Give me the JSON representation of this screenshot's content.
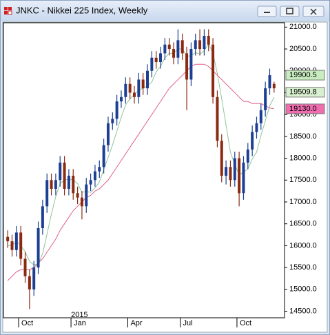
{
  "chart_data": {
    "type": "candlestick",
    "title": "JNKC - Nikkei 225 Index, Weekly",
    "categories": [
      null,
      null,
      null,
      "Oct",
      null,
      null,
      null,
      null,
      null,
      null,
      null,
      null,
      null,
      null,
      null,
      "Jan",
      null,
      null,
      null,
      null,
      null,
      null,
      null,
      null,
      null,
      null,
      null,
      null,
      "Apr",
      null,
      null,
      null,
      null,
      null,
      null,
      null,
      null,
      null,
      null,
      null,
      "Jul",
      null,
      null,
      null,
      null,
      null,
      null,
      null,
      null,
      null,
      null,
      null,
      null,
      "Oct",
      null,
      null,
      null,
      null,
      null,
      null,
      null,
      null
    ],
    "year_label": {
      "index": 15,
      "label": "2015"
    },
    "open": [
      16200,
      16100,
      15900,
      16300,
      15700,
      15300,
      15000,
      15500,
      16400,
      16900,
      17500,
      17300,
      17500,
      17900,
      17300,
      17600,
      17200,
      17100,
      16900,
      17400,
      17500,
      17700,
      17800,
      18300,
      18800,
      18900,
      19300,
      19400,
      19700,
      19500,
      19400,
      19800,
      19600,
      20000,
      20300,
      20200,
      20400,
      20600,
      20500,
      20300,
      20700,
      20400,
      19800,
      20500,
      20700,
      20500,
      20800,
      20600,
      19400,
      18400,
      17600,
      17800,
      17500,
      18000,
      17200,
      17900,
      18200,
      18600,
      18800,
      19100,
      19600,
      19700
    ],
    "high": [
      16350,
      16250,
      16450,
      16450,
      15850,
      15450,
      15650,
      16550,
      17050,
      17650,
      17650,
      17650,
      18050,
      18050,
      17750,
      17750,
      17350,
      17250,
      17550,
      17650,
      17850,
      17950,
      18450,
      18950,
      19050,
      19450,
      19550,
      19850,
      19850,
      19650,
      19950,
      19950,
      20150,
      20450,
      20450,
      20550,
      20750,
      20750,
      20650,
      20950,
      20850,
      20550,
      20650,
      20850,
      20950,
      20950,
      20950,
      20750,
      19550,
      18550,
      17950,
      17950,
      18150,
      18150,
      18050,
      18350,
      18750,
      18950,
      19250,
      19750,
      20050,
      19750
    ],
    "low": [
      15950,
      15750,
      15750,
      15550,
      15150,
      14550,
      14850,
      15350,
      16250,
      16750,
      17150,
      17150,
      17350,
      17150,
      17150,
      17050,
      16950,
      16600,
      16750,
      17250,
      17350,
      17550,
      17650,
      18150,
      18650,
      18750,
      19150,
      19250,
      19350,
      19250,
      19250,
      19450,
      19450,
      19850,
      20050,
      20050,
      20250,
      20350,
      20150,
      20150,
      20250,
      19100,
      19650,
      20350,
      20350,
      20350,
      20450,
      19250,
      18250,
      17450,
      17400,
      17350,
      17350,
      16900,
      17050,
      17750,
      18050,
      18450,
      18650,
      18950,
      19450,
      19500
    ],
    "close": [
      16100,
      15900,
      16300,
      15700,
      15300,
      15000,
      15500,
      16400,
      16900,
      17500,
      17300,
      17500,
      17900,
      17300,
      17600,
      17200,
      17100,
      16900,
      17400,
      17500,
      17700,
      17800,
      18300,
      18800,
      18900,
      19300,
      19400,
      19700,
      19500,
      19400,
      19800,
      19600,
      20000,
      20300,
      20200,
      20400,
      20600,
      20500,
      20300,
      20700,
      20400,
      19800,
      20500,
      20700,
      20500,
      20800,
      20600,
      19400,
      18400,
      17600,
      17800,
      17500,
      18000,
      17200,
      17900,
      18200,
      18600,
      18800,
      19100,
      19600,
      19900,
      19600
    ],
    "up_color": "#1c3f94",
    "down_color": "#8b2a12",
    "lines": [
      {
        "color": "#8fc49a",
        "values": [
          16000,
          16000,
          16100,
          16000,
          15860,
          15640,
          15560,
          15580,
          15820,
          16260,
          16720,
          17120,
          17420,
          17500,
          17520,
          17500,
          17420,
          17220,
          17240,
          17220,
          17320,
          17460,
          17740,
          18020,
          18300,
          18620,
          18940,
          19220,
          19360,
          19460,
          19560,
          19600,
          19660,
          19740,
          19980,
          20100,
          20300,
          20400,
          20400,
          20500,
          20500,
          20340,
          20340,
          20420,
          20380,
          20460,
          20620,
          20400,
          19940,
          19360,
          18760,
          18140,
          17860,
          17620,
          17680,
          17760,
          17980,
          18140,
          18520,
          18860,
          19200,
          19400
        ]
      },
      {
        "color": "#e0608a",
        "values": [
          15200,
          15300,
          15400,
          15450,
          15450,
          15450,
          15500,
          15600,
          15700,
          15850,
          16000,
          16150,
          16350,
          16500,
          16650,
          16800,
          16900,
          17000,
          17100,
          17150,
          17250,
          17300,
          17400,
          17500,
          17650,
          17800,
          17950,
          18100,
          18250,
          18400,
          18550,
          18700,
          18850,
          19000,
          19150,
          19300,
          19450,
          19600,
          19700,
          19800,
          19900,
          20000,
          20100,
          20150,
          20150,
          20150,
          20100,
          20000,
          19900,
          19800,
          19700,
          19600,
          19500,
          19400,
          19300,
          19300,
          19250,
          19250,
          19250,
          19200,
          19150,
          19130
        ]
      }
    ],
    "ylim": [
      14350,
      21100
    ],
    "yticks": [
      {
        "value": 14500,
        "label": "14500.0"
      },
      {
        "value": 15000,
        "label": "15000.0"
      },
      {
        "value": 15500,
        "label": "15500.0"
      },
      {
        "value": 16000,
        "label": "16000.0"
      },
      {
        "value": 16500,
        "label": "16500.0"
      },
      {
        "value": 17000,
        "label": "17000.0"
      },
      {
        "value": 17500,
        "label": "17500.0"
      },
      {
        "value": 18000,
        "label": "18000.0"
      },
      {
        "value": 18500,
        "label": "18500.0"
      },
      {
        "value": 19000,
        "label": "19000.0"
      },
      {
        "value": 19500,
        "label": "19500.0"
      },
      {
        "value": 20000,
        "label": "20000.0"
      },
      {
        "value": 20500,
        "label": "20500.0"
      },
      {
        "value": 21000,
        "label": "21000.0"
      }
    ],
    "price_tags": [
      {
        "value": 19900.5,
        "label": "19900.5",
        "color": "#c8ecc0"
      },
      {
        "value": 19509.8,
        "label": "19509.8",
        "color": "#d8f0d0"
      },
      {
        "value": 19130,
        "label": "19130.0",
        "color": "#f06eb0"
      }
    ]
  }
}
